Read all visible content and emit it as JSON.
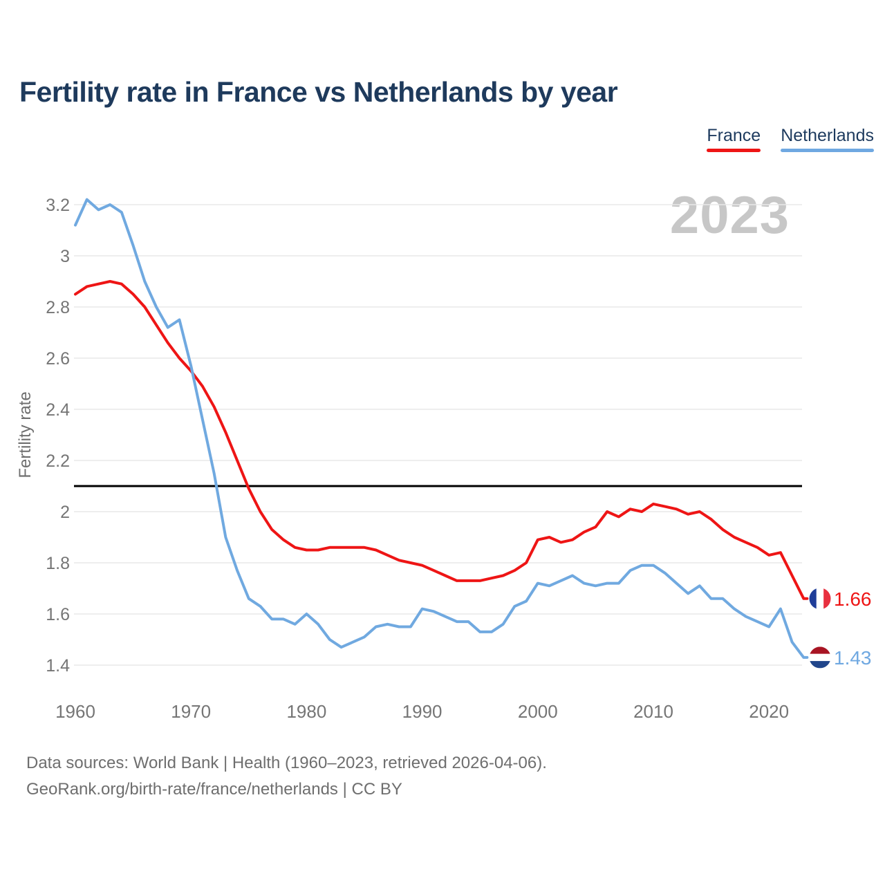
{
  "title": "Fertility rate in France vs Netherlands by year",
  "watermark": "2023",
  "legend": {
    "items": [
      {
        "label": "France",
        "color": "#ee1515"
      },
      {
        "label": "Netherlands",
        "color": "#6fa8e1"
      }
    ]
  },
  "y_axis": {
    "label": "Fertility rate",
    "ticks": [
      {
        "value": 3.2,
        "label": "3.2"
      },
      {
        "value": 3.0,
        "label": "3"
      },
      {
        "value": 2.8,
        "label": "2.8"
      },
      {
        "value": 2.6,
        "label": "2.6"
      },
      {
        "value": 2.4,
        "label": "2.4"
      },
      {
        "value": 2.2,
        "label": "2.2"
      },
      {
        "value": 2.0,
        "label": "2"
      },
      {
        "value": 1.8,
        "label": "1.8"
      },
      {
        "value": 1.6,
        "label": "1.6"
      },
      {
        "value": 1.4,
        "label": "1.4"
      }
    ]
  },
  "x_axis": {
    "ticks": [
      {
        "value": 1960,
        "label": "1960"
      },
      {
        "value": 1970,
        "label": "1970"
      },
      {
        "value": 1980,
        "label": "1980"
      },
      {
        "value": 1990,
        "label": "1990"
      },
      {
        "value": 2000,
        "label": "2000"
      },
      {
        "value": 2010,
        "label": "2010"
      },
      {
        "value": 2020,
        "label": "2020"
      }
    ]
  },
  "end_labels": [
    {
      "series": "France",
      "value": "1.66",
      "color": "#ee1515",
      "flag": "france"
    },
    {
      "series": "Netherlands",
      "value": "1.43",
      "color": "#6fa8e1",
      "flag": "netherlands"
    }
  ],
  "flag_colors": {
    "france": {
      "left": "#1f3d99",
      "mid": "#ffffff",
      "right": "#e8303f"
    },
    "netherlands": {
      "top": "#a81423",
      "mid": "#ffffff",
      "bottom": "#21468b"
    }
  },
  "footer": {
    "line1": "Data sources: World Bank | Health (1960–2023, retrieved 2026-04-06).",
    "line2": "GeoRank.org/birth-rate/france/netherlands | CC BY"
  },
  "chart_data": {
    "type": "line",
    "title": "Fertility rate in France vs Netherlands by year",
    "xlabel": "",
    "ylabel": "Fertility rate",
    "xlim": [
      1960,
      2023
    ],
    "ylim": [
      1.4,
      3.2
    ],
    "grid": "horizontal",
    "legend_position": "top-right",
    "reference_line": {
      "value": 2.1,
      "color": "#000000"
    },
    "x": [
      1960,
      1961,
      1962,
      1963,
      1964,
      1965,
      1966,
      1967,
      1968,
      1969,
      1970,
      1971,
      1972,
      1973,
      1974,
      1975,
      1976,
      1977,
      1978,
      1979,
      1980,
      1981,
      1982,
      1983,
      1984,
      1985,
      1986,
      1987,
      1988,
      1989,
      1990,
      1991,
      1992,
      1993,
      1994,
      1995,
      1996,
      1997,
      1998,
      1999,
      2000,
      2001,
      2002,
      2003,
      2004,
      2005,
      2006,
      2007,
      2008,
      2009,
      2010,
      2011,
      2012,
      2013,
      2014,
      2015,
      2016,
      2017,
      2018,
      2019,
      2020,
      2021,
      2022,
      2023
    ],
    "series": [
      {
        "name": "France",
        "color": "#ee1515",
        "end_value": 1.66,
        "values": [
          2.85,
          2.88,
          2.89,
          2.9,
          2.89,
          2.85,
          2.8,
          2.73,
          2.66,
          2.6,
          2.55,
          2.49,
          2.41,
          2.31,
          2.2,
          2.09,
          2.0,
          1.93,
          1.89,
          1.86,
          1.85,
          1.85,
          1.86,
          1.86,
          1.86,
          1.86,
          1.85,
          1.83,
          1.81,
          1.8,
          1.79,
          1.77,
          1.75,
          1.73,
          1.73,
          1.73,
          1.74,
          1.75,
          1.77,
          1.8,
          1.89,
          1.9,
          1.88,
          1.89,
          1.92,
          1.94,
          2.0,
          1.98,
          2.01,
          2.0,
          2.03,
          2.02,
          2.01,
          1.99,
          2.0,
          1.97,
          1.93,
          1.9,
          1.88,
          1.86,
          1.83,
          1.84,
          1.75,
          1.66
        ]
      },
      {
        "name": "Netherlands",
        "color": "#70a9e0",
        "end_value": 1.43,
        "values": [
          3.12,
          3.22,
          3.18,
          3.2,
          3.17,
          3.04,
          2.9,
          2.8,
          2.72,
          2.75,
          2.57,
          2.36,
          2.15,
          1.9,
          1.77,
          1.66,
          1.63,
          1.58,
          1.58,
          1.56,
          1.6,
          1.56,
          1.5,
          1.47,
          1.49,
          1.51,
          1.55,
          1.56,
          1.55,
          1.55,
          1.62,
          1.61,
          1.59,
          1.57,
          1.57,
          1.53,
          1.53,
          1.56,
          1.63,
          1.65,
          1.72,
          1.71,
          1.73,
          1.75,
          1.72,
          1.71,
          1.72,
          1.72,
          1.77,
          1.79,
          1.79,
          1.76,
          1.72,
          1.68,
          1.71,
          1.66,
          1.66,
          1.62,
          1.59,
          1.57,
          1.55,
          1.62,
          1.49,
          1.43
        ]
      }
    ]
  }
}
